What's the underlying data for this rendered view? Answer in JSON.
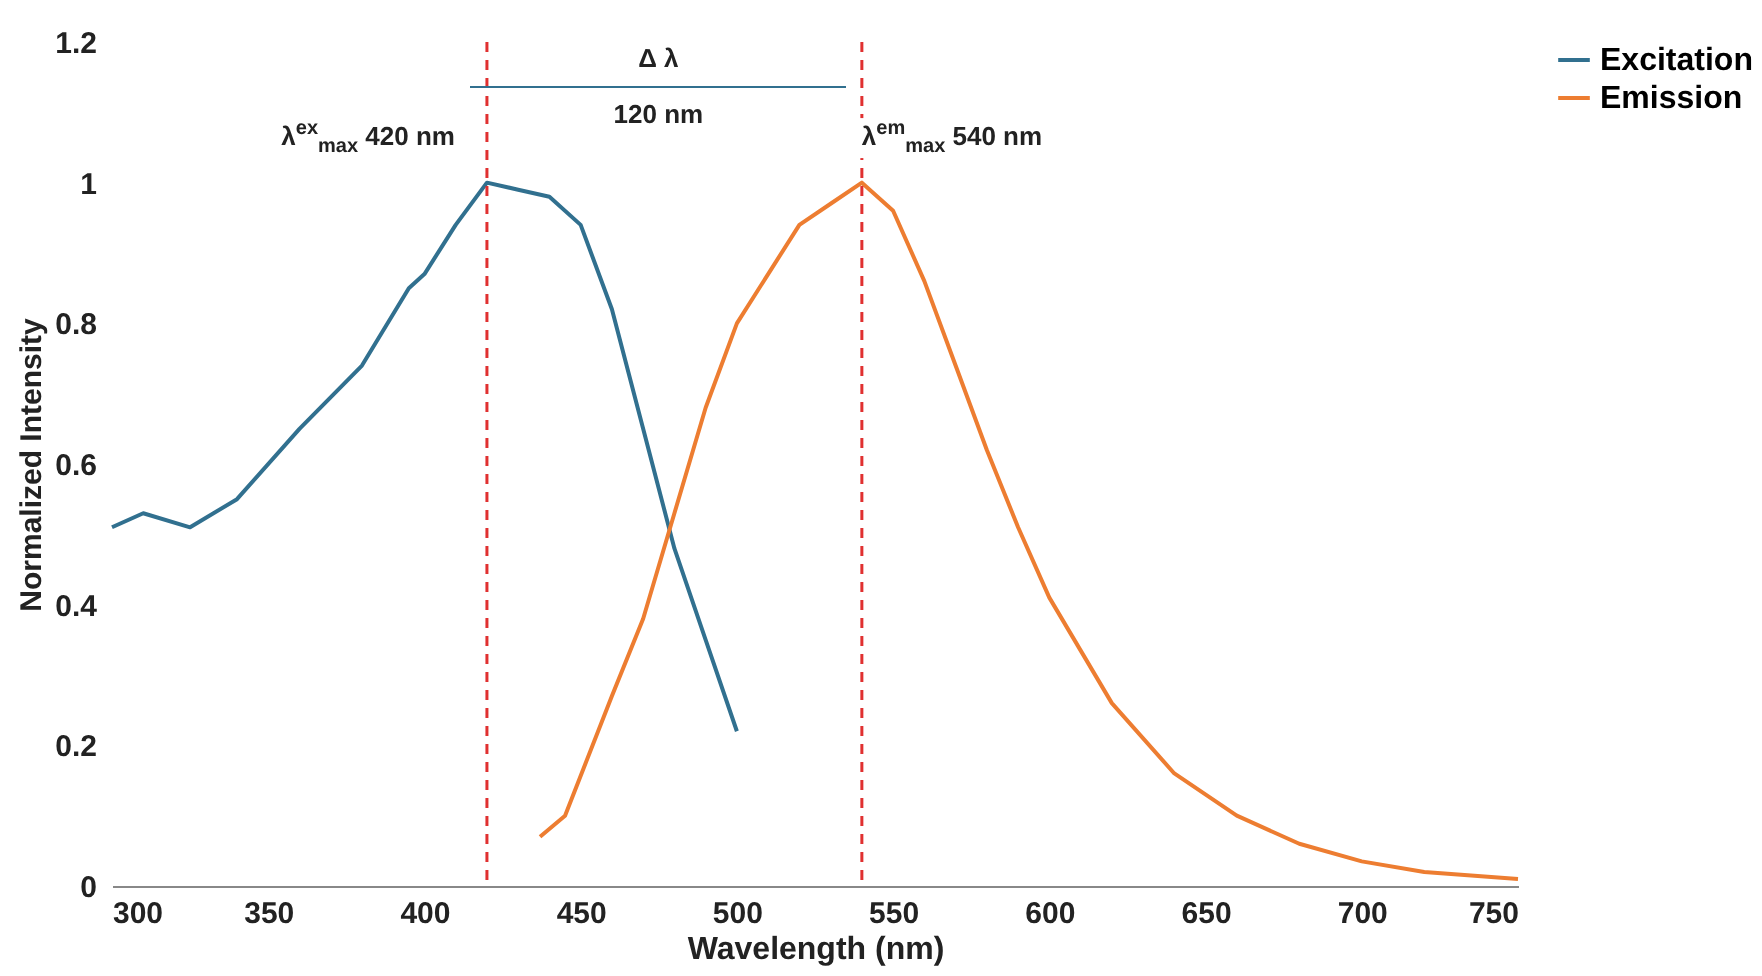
{
  "chart_data": {
    "type": "line",
    "xlabel": "Wavelength (nm)",
    "ylabel": "Normalized Intensity",
    "xlim": [
      300,
      750
    ],
    "xticks": [
      300,
      350,
      400,
      450,
      500,
      550,
      600,
      650,
      700,
      750
    ],
    "ylim": [
      0,
      1.2
    ],
    "yticks": [
      0,
      0.2,
      0.4,
      0.6,
      0.8,
      1,
      1.2
    ],
    "grid": false,
    "legend": "right",
    "marker": "none",
    "line_style": "solid",
    "series": [
      {
        "name": "Excitation",
        "color": "#31708f",
        "x": [
          300,
          310,
          325,
          340,
          360,
          380,
          395,
          400,
          410,
          420,
          430,
          440,
          450,
          460,
          470,
          480,
          490,
          500
        ],
        "values": [
          0.51,
          0.53,
          0.51,
          0.55,
          0.65,
          0.74,
          0.85,
          0.87,
          0.94,
          1.0,
          0.99,
          0.98,
          0.94,
          0.82,
          0.65,
          0.48,
          0.35,
          0.22
        ]
      },
      {
        "name": "Emission",
        "color": "#ed7d31",
        "x": [
          437,
          445,
          460,
          470,
          480,
          490,
          500,
          510,
          520,
          530,
          540,
          550,
          560,
          570,
          580,
          590,
          600,
          620,
          640,
          660,
          680,
          700,
          720,
          750
        ],
        "values": [
          0.07,
          0.1,
          0.27,
          0.38,
          0.53,
          0.68,
          0.8,
          0.87,
          0.94,
          0.97,
          1.0,
          0.96,
          0.86,
          0.74,
          0.62,
          0.51,
          0.41,
          0.26,
          0.16,
          0.1,
          0.06,
          0.035,
          0.02,
          0.01
        ]
      }
    ],
    "ref_lines": [
      {
        "axis": "x",
        "value": 420,
        "color": "#e03030",
        "line_style": "dashed"
      },
      {
        "axis": "x",
        "value": 540,
        "color": "#e03030",
        "line_style": "dashed"
      }
    ],
    "annotations": [
      {
        "text": "λ$^{ex}$$_{max}$ 420 nm",
        "x": 420,
        "y": 1.0
      },
      {
        "text": "λ$^{em}$$_{max}$ 540 nm",
        "x": 540,
        "y": 1.0
      },
      "Δ λ",
      "120 nm"
    ]
  }
}
